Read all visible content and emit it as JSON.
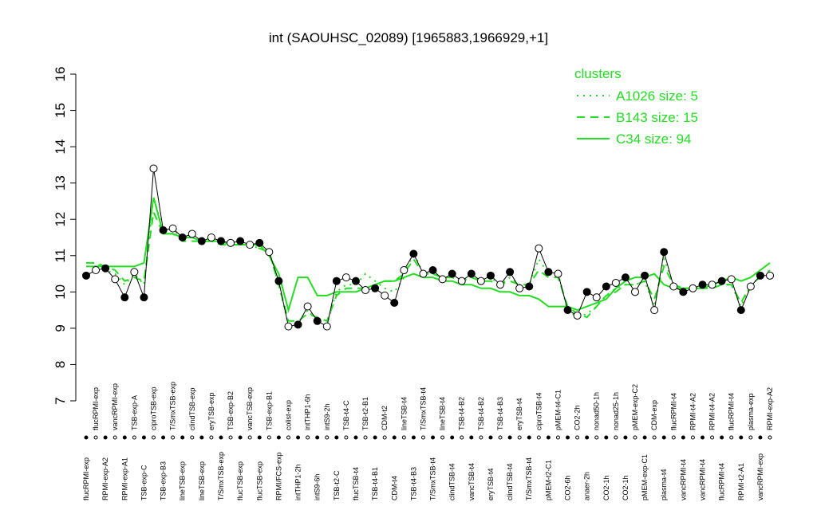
{
  "chart_data": {
    "type": "line",
    "title": "int (SAOUHSC_02089) [1965883,1966929,+1]",
    "categories": [
      "flucRPMI-exp",
      "flucRPMI-exp",
      "RPMI-exp-A2",
      "vancRPMI-exp",
      "RPMI-exp-A1",
      "TSB-exp-A",
      "TSB-exp-C",
      "ciproTSB-exp",
      "TSB-exp-B3",
      "T/SmxTSB-exp",
      "lineTSB-exp",
      "clindTSB-exp",
      "lineTSB-exp",
      "eryTSB-exp",
      "T/SmxTSB-exp",
      "TSB-exp-B2",
      "flucTSB-exp",
      "vancTSB-exp",
      "flucTSB-exp",
      "TSB-exp-B1",
      "RPMI/FCS-exp",
      "colist-exp",
      "intTHP1-2h",
      "intTHP1-6h",
      "intS9-6h",
      "intS9-2h",
      "TSB-t2-C",
      "TSB-t4-C",
      "flucTSB-t4",
      "TSB-t2-B1",
      "TSB-t4-B1",
      "CDM-t2",
      "CDM-t4",
      "lineTSB-t4",
      "TSB-t4-B3",
      "T/SmxTSB-t4",
      "T/SmxTSB-t4",
      "lineTSB-t4",
      "clindTSB-t4",
      "TSB-t4-B2",
      "vancTSB-t4",
      "TSB-t4-B2",
      "eryTSB-t4",
      "TSB-t4-B3",
      "clindTSB-t4",
      "eryTSB-t4",
      "T/SmxTSB-t4",
      "ciproTSB-t4",
      "pMEM-t2-C1",
      "pMEM-t4-C1",
      "CO2-6h",
      "CO2-2h",
      "anaer-2h",
      "nonad50-1h",
      "CO2-1h",
      "nonad25-1h",
      "CO2-1h",
      "pMEM-exp-C2",
      "pMEM-exp-C1",
      "CDM-exp",
      "plasma-t4",
      "flucRPMI-t4",
      "vancRPMI-t4",
      "RPMI-t4-A2",
      "vancRPMI-t4",
      "RPMI-t4-A2",
      "flucRPMI-t4",
      "flucRPMI-t4",
      "RPMI-t2-A1",
      "plasma-exp",
      "vancRPMI-exp",
      "RPMI-exp-A2"
    ],
    "values": [
      10.45,
      10.6,
      10.65,
      10.35,
      9.85,
      10.55,
      9.85,
      13.4,
      11.7,
      11.75,
      11.5,
      11.6,
      11.4,
      11.5,
      11.4,
      11.35,
      11.4,
      11.3,
      11.35,
      11.1,
      10.3,
      9.05,
      9.1,
      9.6,
      9.2,
      9.05,
      10.3,
      10.4,
      10.3,
      10.05,
      10.1,
      9.9,
      9.7,
      10.6,
      11.05,
      10.5,
      10.6,
      10.35,
      10.5,
      10.3,
      10.5,
      10.3,
      10.45,
      10.2,
      10.55,
      10.1,
      10.15,
      11.2,
      10.55,
      10.5,
      9.5,
      9.35,
      10.0,
      9.85,
      10.15,
      10.25,
      10.4,
      10.0,
      10.45,
      9.5,
      11.1,
      10.15,
      10.0,
      10.1,
      10.2,
      10.2,
      10.3,
      10.35,
      9.5,
      10.15,
      10.45,
      10.45
    ],
    "color": "#000000",
    "legend_title": "clusters",
    "series": [
      {
        "name": "A1026 size: 5",
        "color": "#22dd22",
        "dash": "dotted",
        "values": [
          10.8,
          10.8,
          10.6,
          10.5,
          10.2,
          10.5,
          10.2,
          12.6,
          11.7,
          11.7,
          11.5,
          11.5,
          11.4,
          11.4,
          11.4,
          11.3,
          11.3,
          11.3,
          11.2,
          11.1,
          10.2,
          9.1,
          9.1,
          9.5,
          9.2,
          9.1,
          10.0,
          10.2,
          10.2,
          10.5,
          10.3,
          10.1,
          10.0,
          10.4,
          11.1,
          10.5,
          10.5,
          10.4,
          10.4,
          10.3,
          10.4,
          10.3,
          10.4,
          10.2,
          10.4,
          10.2,
          10.2,
          10.9,
          10.5,
          10.5,
          9.5,
          9.3,
          9.4,
          9.6,
          9.9,
          10.1,
          10.2,
          10.2,
          10.3,
          9.6,
          10.9,
          10.2,
          10.1,
          10.1,
          10.1,
          10.2,
          10.2,
          10.2,
          9.6,
          10.2,
          10.4,
          10.5
        ]
      },
      {
        "name": "B143 size: 15",
        "color": "#22dd22",
        "dash": "dashed",
        "values": [
          10.8,
          10.8,
          10.7,
          10.6,
          10.3,
          10.4,
          10.3,
          12.2,
          11.6,
          11.6,
          11.4,
          11.4,
          11.4,
          11.4,
          11.3,
          11.3,
          11.3,
          11.3,
          11.2,
          11.1,
          10.2,
          9.2,
          9.2,
          9.4,
          9.3,
          9.2,
          9.9,
          10.1,
          10.1,
          10.1,
          10.2,
          10.3,
          10.3,
          10.5,
          10.9,
          10.5,
          10.5,
          10.4,
          10.4,
          10.3,
          10.4,
          10.3,
          10.3,
          10.2,
          10.3,
          10.2,
          10.2,
          10.6,
          10.4,
          10.4,
          9.6,
          9.4,
          9.3,
          9.6,
          9.9,
          10.0,
          10.2,
          10.2,
          10.3,
          9.8,
          10.7,
          10.2,
          10.1,
          10.1,
          10.1,
          10.1,
          10.2,
          10.2,
          9.7,
          10.2,
          10.4,
          10.6
        ]
      },
      {
        "name": "C34 size: 94",
        "color": "#22dd22",
        "dash": "solid",
        "values": [
          10.7,
          10.7,
          10.7,
          10.7,
          10.7,
          10.7,
          10.8,
          12.6,
          11.6,
          11.6,
          11.5,
          11.5,
          11.4,
          11.4,
          11.4,
          11.3,
          11.3,
          11.3,
          11.3,
          11.0,
          10.5,
          9.5,
          10.4,
          10.4,
          9.9,
          9.9,
          10.0,
          10.0,
          10.0,
          10.1,
          10.2,
          10.3,
          10.3,
          10.4,
          10.5,
          10.4,
          10.4,
          10.3,
          10.3,
          10.2,
          10.2,
          10.1,
          10.1,
          10.0,
          10.0,
          9.9,
          9.9,
          9.8,
          9.6,
          9.6,
          9.6,
          9.5,
          9.6,
          9.7,
          9.8,
          10.1,
          10.3,
          10.4,
          10.4,
          10.5,
          10.2,
          10.1,
          10.1,
          10.1,
          10.1,
          10.2,
          10.3,
          10.4,
          10.3,
          10.4,
          10.6,
          10.8
        ]
      }
    ],
    "ylim": [
      7,
      16
    ],
    "yticks": [
      7,
      8,
      9,
      10,
      11,
      12,
      13,
      14,
      15,
      16
    ],
    "legend": "top-right"
  }
}
